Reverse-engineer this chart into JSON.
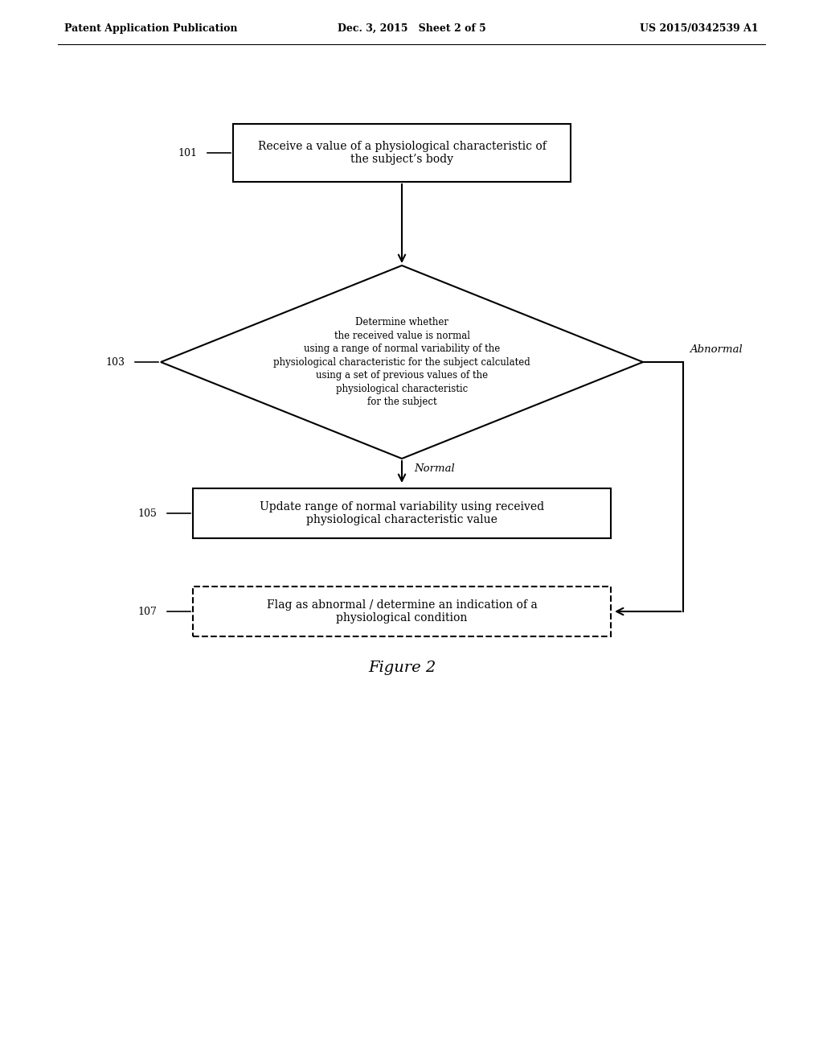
{
  "bg_color": "#ffffff",
  "header_left": "Patent Application Publication",
  "header_mid": "Dec. 3, 2015   Sheet 2 of 5",
  "header_right": "US 2015/0342539 A1",
  "figure_label": "Figure 2",
  "box1_text": "Receive a value of a physiological characteristic of\nthe subject’s body",
  "box1_label": "101",
  "diamond_text": "Determine whether\nthe received value is normal\nusing a range of normal variability of the\nphysiological characteristic for the subject calculated\nusing a set of previous values of the\nphysiological characteristic\nfor the subject",
  "diamond_label": "103",
  "box2_text": "Update range of normal variability using received\nphysiological characteristic value",
  "box2_label": "105",
  "box3_text": "Flag as abnormal / determine an indication of a\nphysiological condition",
  "box3_label": "107",
  "label_normal": "Normal",
  "label_abnormal": "Abnormal",
  "text_color": "#000000",
  "box_edge_color": "#000000",
  "arrow_color": "#000000",
  "font_size_body": 10,
  "font_size_header": 9,
  "font_size_label": 9,
  "font_size_figure": 12
}
